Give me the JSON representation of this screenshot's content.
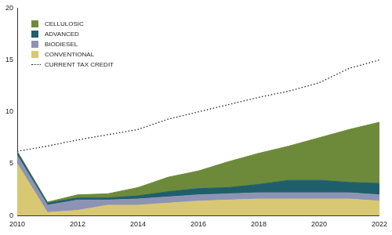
{
  "chart_data": {
    "type": "area",
    "x": [
      2010,
      2011,
      2012,
      2013,
      2014,
      2015,
      2016,
      2017,
      2018,
      2019,
      2020,
      2021,
      2022
    ],
    "series": [
      {
        "name": "CONVENTIONAL",
        "color": "#d8c873",
        "values": [
          5.0,
          0.3,
          0.5,
          1.0,
          1.0,
          1.2,
          1.4,
          1.5,
          1.6,
          1.6,
          1.6,
          1.6,
          1.4
        ]
      },
      {
        "name": "BIODIESEL",
        "color": "#8d93b5",
        "values": [
          0.8,
          0.7,
          1.0,
          0.5,
          0.6,
          0.6,
          0.6,
          0.6,
          0.6,
          0.6,
          0.6,
          0.6,
          0.6
        ]
      },
      {
        "name": "ADVANCED",
        "color": "#1f5f6b",
        "values": [
          0.3,
          0.2,
          0.2,
          0.2,
          0.3,
          0.5,
          0.6,
          0.6,
          0.8,
          1.2,
          1.2,
          1.0,
          1.1
        ]
      },
      {
        "name": "CELLULOSIC",
        "color": "#6d8a3a",
        "values": [
          0.1,
          0.1,
          0.3,
          0.4,
          0.8,
          1.4,
          1.7,
          2.5,
          3.0,
          3.3,
          4.1,
          5.1,
          5.9
        ]
      },
      {
        "name": "CURRENT TAX CREDIT",
        "color": "#222222",
        "type": "line",
        "line_style": "dotted",
        "values": [
          6.2,
          6.7,
          7.3,
          7.8,
          8.3,
          9.3,
          10.0,
          10.7,
          11.4,
          12.0,
          12.8,
          14.2,
          15.0
        ]
      }
    ],
    "stacked": true,
    "legend": "top-left",
    "grid": false,
    "xlim": [
      2010,
      2022
    ],
    "xticks": [
      2010,
      2012,
      2014,
      2016,
      2018,
      2020,
      2022
    ],
    "ylim": [
      0,
      20
    ],
    "yticks": [
      0,
      5,
      10,
      15,
      20
    ]
  }
}
